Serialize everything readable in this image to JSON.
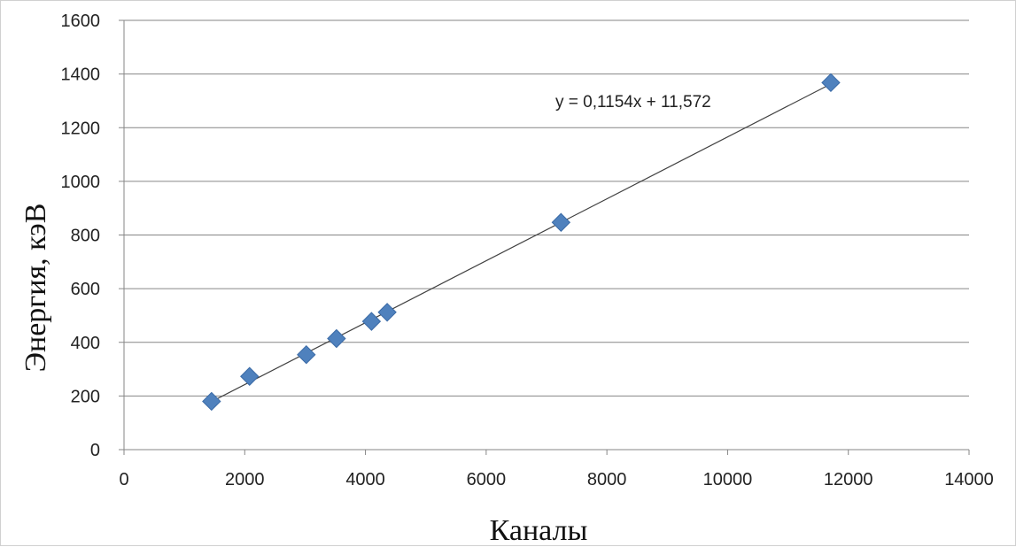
{
  "chart_data": {
    "type": "scatter",
    "xlabel": "Каналы",
    "ylabel": "Энергия, кэВ",
    "xlim": [
      0,
      14000
    ],
    "ylim": [
      0,
      1600
    ],
    "x_ticks": [
      "0",
      "2000",
      "4000",
      "6000",
      "8000",
      "10000",
      "12000",
      "14000"
    ],
    "y_ticks": [
      "0",
      "200",
      "400",
      "600",
      "800",
      "1000",
      "1200",
      "1400",
      "1600"
    ],
    "grid": "horizontal",
    "marker": "diamond",
    "marker_color": "#4f81bd",
    "series": [
      {
        "points": [
          {
            "x": 1450,
            "y": 180
          },
          {
            "x": 2080,
            "y": 273
          },
          {
            "x": 3020,
            "y": 354
          },
          {
            "x": 3520,
            "y": 414
          },
          {
            "x": 4100,
            "y": 478
          },
          {
            "x": 4360,
            "y": 512
          },
          {
            "x": 7240,
            "y": 847
          },
          {
            "x": 11710,
            "y": 1368
          }
        ]
      }
    ],
    "trendline": {
      "type": "linear",
      "slope": 0.1154,
      "intercept": 11.572,
      "x_range": [
        1450,
        11710
      ],
      "equation_label": "y = 0,1154x + 11,572"
    }
  }
}
